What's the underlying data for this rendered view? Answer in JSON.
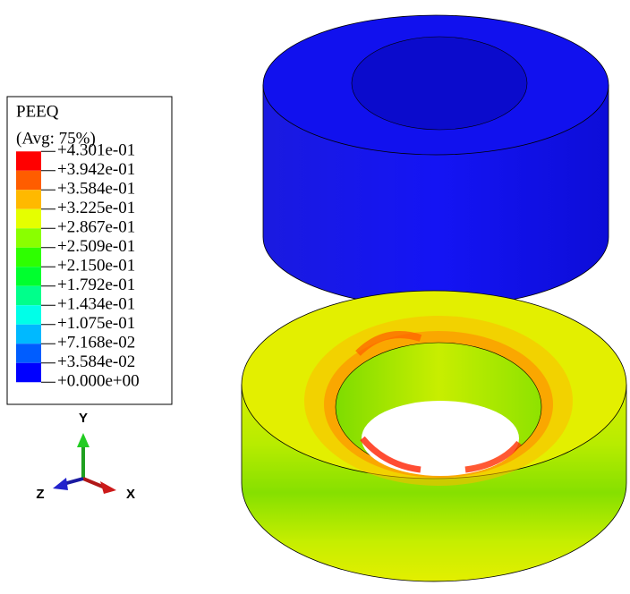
{
  "legend": {
    "title": "PEEQ",
    "subtitle": "(Avg: 75%)",
    "labels": [
      "+4.301e-01",
      "+3.942e-01",
      "+3.584e-01",
      "+3.225e-01",
      "+2.867e-01",
      "+2.509e-01",
      "+2.150e-01",
      "+1.792e-01",
      "+1.434e-01",
      "+1.075e-01",
      "+7.168e-02",
      "+3.584e-02",
      "+0.000e+00"
    ],
    "colors": [
      "#ff0000",
      "#ff5d00",
      "#ffb900",
      "#e5ff00",
      "#8aff00",
      "#2eff00",
      "#00ff2e",
      "#00ff8b",
      "#00ffe8",
      "#00b9ff",
      "#005dff",
      "#0000ff"
    ]
  },
  "triad": {
    "y": "Y",
    "x": "X",
    "z": "Z"
  }
}
